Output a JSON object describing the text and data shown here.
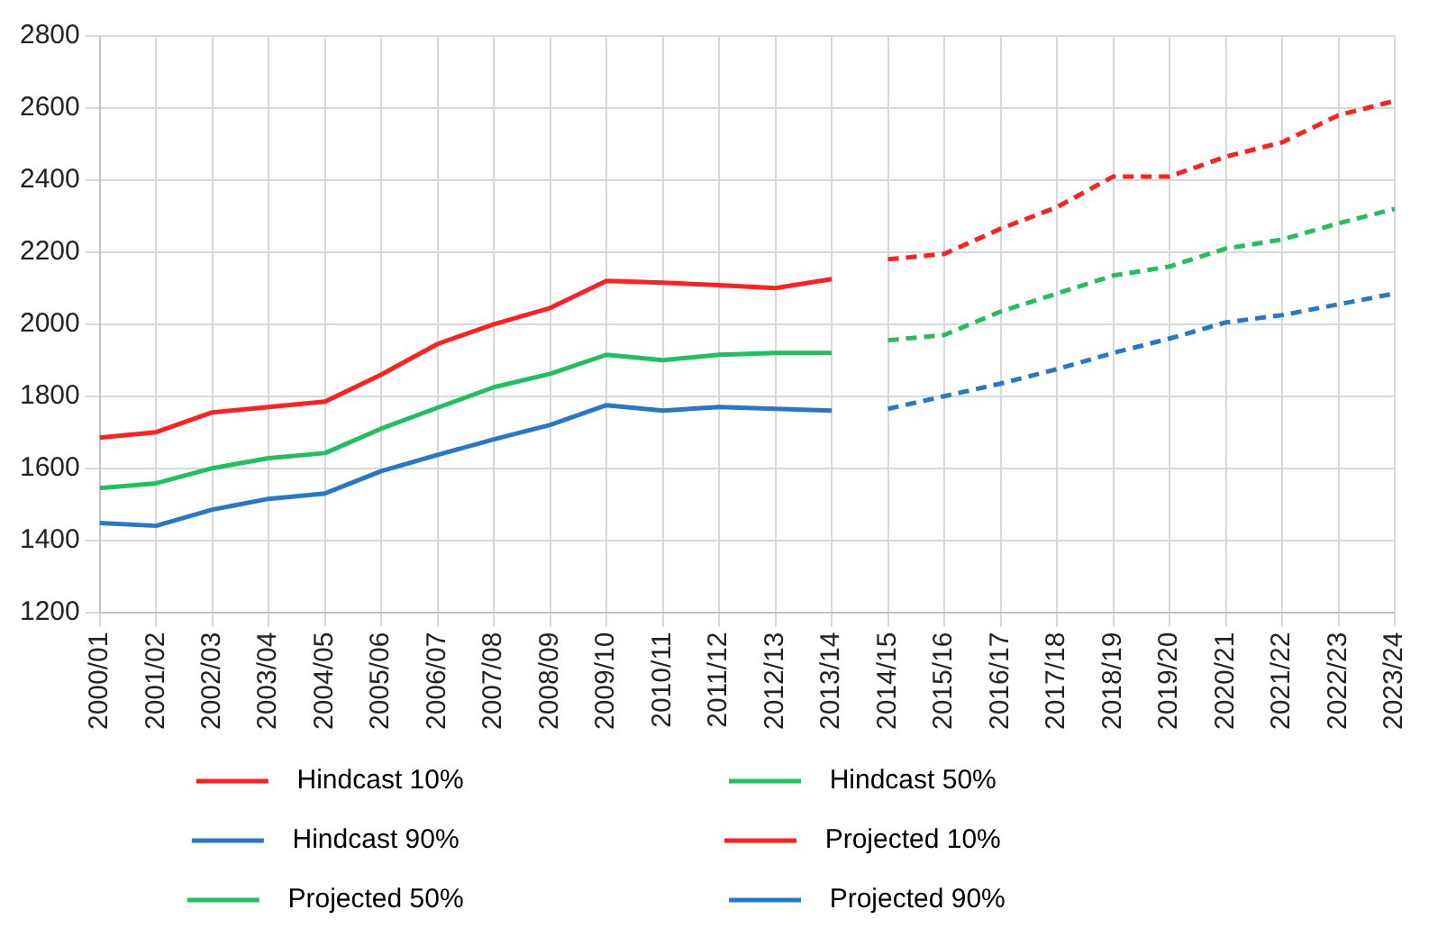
{
  "chart_data": {
    "type": "line",
    "categories": [
      "2000/01",
      "2001/02",
      "2002/03",
      "2003/04",
      "2004/05",
      "2005/06",
      "2006/07",
      "2007/08",
      "2008/09",
      "2009/10",
      "2010/11",
      "2011/12",
      "2012/13",
      "2013/14",
      "2014/15",
      "2015/16",
      "2016/17",
      "2017/18",
      "2018/19",
      "2019/20",
      "2020/21",
      "2021/22",
      "2022/23",
      "2023/24"
    ],
    "ylim": [
      1200,
      2800
    ],
    "yticks": [
      1200,
      1400,
      1600,
      1800,
      2000,
      2200,
      2400,
      2600,
      2800
    ],
    "grid": true,
    "legend": "bottom",
    "marker": "none",
    "series": [
      {
        "name": "Hindcast 10%",
        "color": "#ff2020",
        "line_style": "solid",
        "values": [
          1685,
          1700,
          1755,
          1770,
          1785,
          1860,
          1945,
          2000,
          2045,
          2120,
          2115,
          2108,
          2100,
          2125,
          null,
          null,
          null,
          null,
          null,
          null,
          null,
          null,
          null,
          null
        ]
      },
      {
        "name": "Hindcast 50%",
        "color": "#20c060",
        "line_style": "solid",
        "values": [
          1545,
          1558,
          1600,
          1628,
          1642,
          1710,
          1768,
          1825,
          1862,
          1915,
          1900,
          1915,
          1920,
          1920,
          null,
          null,
          null,
          null,
          null,
          null,
          null,
          null,
          null,
          null
        ]
      },
      {
        "name": "Hindcast 90%",
        "color": "#2878c8",
        "line_style": "solid",
        "values": [
          1448,
          1440,
          1485,
          1515,
          1530,
          1592,
          1637,
          1680,
          1720,
          1775,
          1760,
          1770,
          1765,
          1760,
          null,
          null,
          null,
          null,
          null,
          null,
          null,
          null,
          null,
          null
        ]
      },
      {
        "name": "Projected 10%",
        "color": "#ff2020",
        "line_style": "dashed",
        "values": [
          null,
          null,
          null,
          null,
          null,
          null,
          null,
          null,
          null,
          null,
          null,
          null,
          null,
          null,
          2180,
          2195,
          2265,
          2325,
          2410,
          2410,
          2465,
          2505,
          2580,
          2620
        ]
      },
      {
        "name": "Projected 50%",
        "color": "#20c060",
        "line_style": "dashed",
        "values": [
          null,
          null,
          null,
          null,
          null,
          null,
          null,
          null,
          null,
          null,
          null,
          null,
          null,
          null,
          1955,
          1970,
          2035,
          2085,
          2135,
          2160,
          2210,
          2235,
          2280,
          2320
        ]
      },
      {
        "name": "Projected 90%",
        "color": "#2878c8",
        "line_style": "dashed",
        "values": [
          null,
          null,
          null,
          null,
          null,
          null,
          null,
          null,
          null,
          null,
          null,
          null,
          null,
          null,
          1765,
          1800,
          1835,
          1875,
          1920,
          1960,
          2005,
          2025,
          2055,
          2085
        ]
      }
    ]
  }
}
